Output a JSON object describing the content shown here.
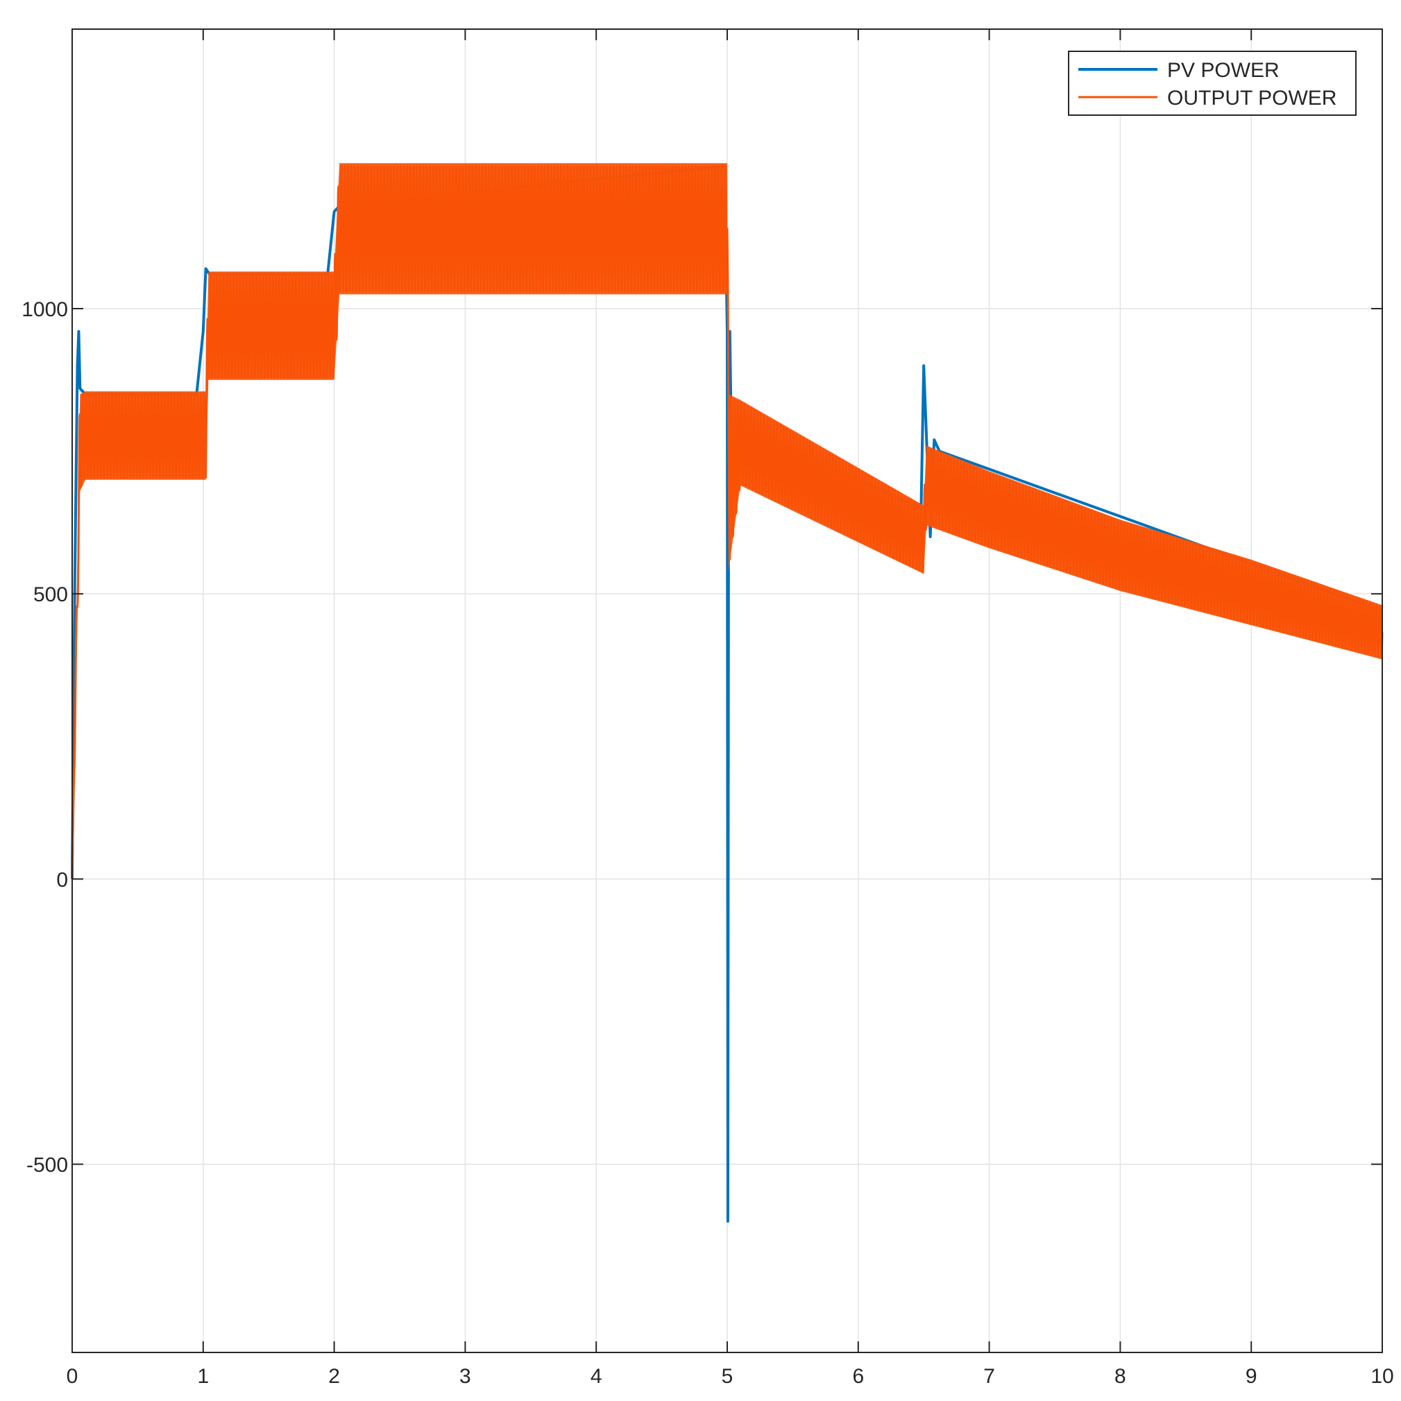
{
  "chart_data": {
    "type": "line",
    "title": "",
    "xlabel": "",
    "ylabel": "",
    "xlim": [
      0,
      10
    ],
    "ylim": [
      -830,
      1490
    ],
    "x_ticks": [
      0,
      1,
      2,
      3,
      4,
      5,
      6,
      7,
      8,
      9,
      10
    ],
    "y_ticks": [
      -500,
      0,
      500,
      1000
    ],
    "x_tick_labels": [
      "0",
      "1",
      "2",
      "3",
      "4",
      "5",
      "6",
      "7",
      "8",
      "9",
      "10"
    ],
    "y_tick_labels": [
      "-500",
      "0",
      "500",
      "1000"
    ],
    "grid": true,
    "legend": {
      "location": "top-right",
      "entries": [
        "PV POWER",
        "OUTPUT POWER"
      ]
    },
    "series": [
      {
        "name": "PV POWER",
        "color": "#0072BD",
        "points": [
          [
            0.0,
            0
          ],
          [
            0.02,
            520
          ],
          [
            0.04,
            900
          ],
          [
            0.05,
            960
          ],
          [
            0.06,
            860
          ],
          [
            0.1,
            850
          ],
          [
            0.95,
            850
          ],
          [
            1.0,
            960
          ],
          [
            1.02,
            1070
          ],
          [
            1.05,
            1060
          ],
          [
            1.95,
            1060
          ],
          [
            2.0,
            1170
          ],
          [
            2.04,
            1180
          ],
          [
            4.98,
            1250
          ],
          [
            5.0,
            960
          ],
          [
            5.005,
            -600
          ],
          [
            5.01,
            600
          ],
          [
            5.02,
            960
          ],
          [
            5.03,
            800
          ],
          [
            6.48,
            650
          ],
          [
            6.5,
            900
          ],
          [
            6.52,
            780
          ],
          [
            6.55,
            600
          ],
          [
            6.58,
            770
          ],
          [
            6.62,
            750
          ],
          [
            10.0,
            470
          ]
        ]
      },
      {
        "name": "OUTPUT POWER",
        "color": "#F95208",
        "band": [
          {
            "x": 0.0,
            "lo": 0,
            "hi": 0
          },
          {
            "x": 0.06,
            "lo": 680,
            "hi": 850
          },
          {
            "x": 0.1,
            "lo": 700,
            "hi": 855
          },
          {
            "x": 1.02,
            "lo": 700,
            "hi": 855
          },
          {
            "x": 1.04,
            "lo": 875,
            "hi": 1065
          },
          {
            "x": 2.0,
            "lo": 875,
            "hi": 1065
          },
          {
            "x": 2.04,
            "lo": 1025,
            "hi": 1255
          },
          {
            "x": 5.0,
            "lo": 1025,
            "hi": 1255
          },
          {
            "x": 5.01,
            "lo": 540,
            "hi": 850
          },
          {
            "x": 5.1,
            "lo": 690,
            "hi": 840
          },
          {
            "x": 6.5,
            "lo": 535,
            "hi": 655
          },
          {
            "x": 6.52,
            "lo": 620,
            "hi": 760
          },
          {
            "x": 7.0,
            "lo": 580,
            "hi": 715
          },
          {
            "x": 8.0,
            "lo": 505,
            "hi": 630
          },
          {
            "x": 9.0,
            "lo": 445,
            "hi": 560
          },
          {
            "x": 10.0,
            "lo": 385,
            "hi": 480
          }
        ],
        "oscillation": {
          "min": 0.7,
          "max": 1.0,
          "period": 0.025
        }
      }
    ]
  }
}
